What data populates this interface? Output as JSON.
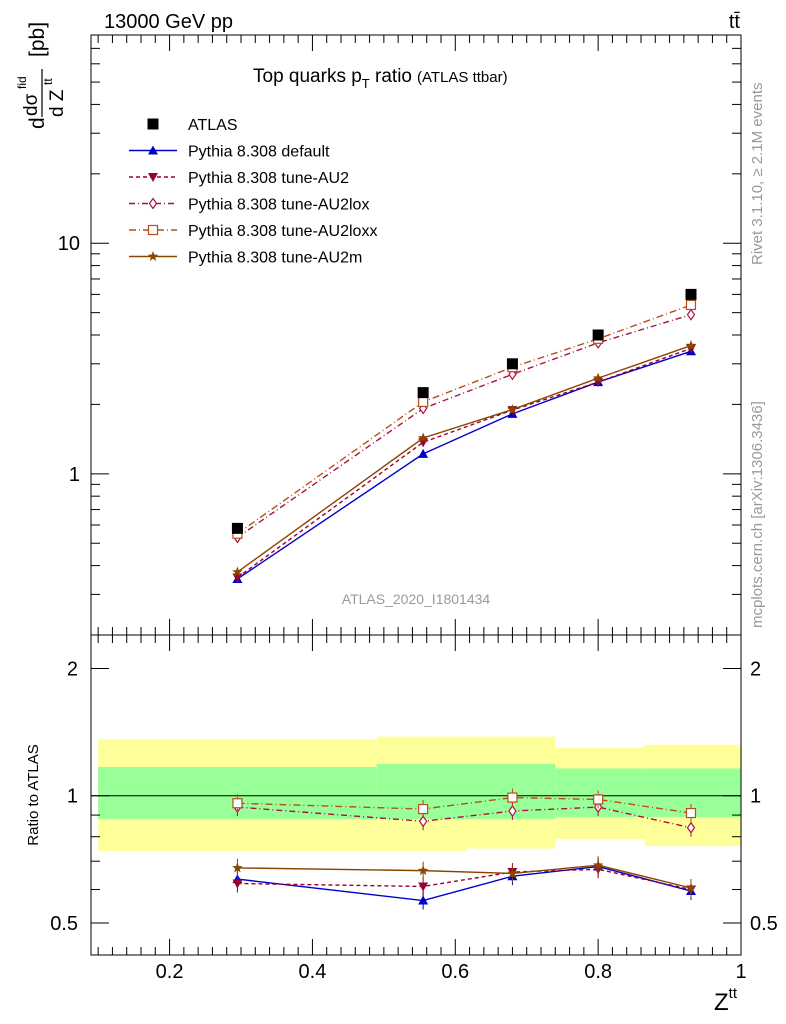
{
  "header": {
    "left": "13000 GeV pp",
    "right": "tt̄"
  },
  "side": {
    "rivet": "Rivet 3.1.10, ≥ 2.1M events",
    "mcplots": "mcplots.cern.ch [arXiv:1306.3436]"
  },
  "chart_data": {
    "type": "line",
    "title": "Top quarks p",
    "title_sub": "T",
    "title_rest": " ratio",
    "title_paren": "(ATLAS ttbar)",
    "analysis_label": "ATLAS_2020_I1801434",
    "ylabel_top": "[pb]",
    "xlabel": "Z",
    "xlabel_sup": "tt",
    "ratio_ylabel": "Ratio to ATLAS",
    "x_ticklabels": [
      "0.2",
      "0.4",
      "0.6",
      "0.8",
      "1"
    ],
    "main_y_ticklabels": [
      "1",
      "10"
    ],
    "ratio_y_ticklabels": [
      "0.5",
      "1",
      "2"
    ],
    "xlim": [
      0.09,
      1.0
    ],
    "main_ylim": [
      0.2,
      80
    ],
    "main_yscale": "log",
    "ratio_ylim": [
      0.42,
      2.4
    ],
    "ratio_yscale": "log",
    "x": [
      0.295,
      0.555,
      0.68,
      0.8,
      0.93
    ],
    "bin_edges": [
      0.1,
      0.49,
      0.615,
      0.74,
      0.865,
      1.0
    ],
    "data": {
      "name": "ATLAS",
      "values": [
        0.58,
        2.25,
        3.0,
        4.0,
        6.0
      ],
      "band_inner": [
        [
          0.88,
          1.17
        ],
        [
          0.88,
          1.19
        ],
        [
          0.88,
          1.19
        ],
        [
          0.89,
          1.16
        ],
        [
          0.89,
          1.16
        ]
      ],
      "band_outer": [
        [
          0.74,
          1.36
        ],
        [
          0.74,
          1.38
        ],
        [
          0.75,
          1.38
        ],
        [
          0.79,
          1.3
        ],
        [
          0.76,
          1.32
        ]
      ]
    },
    "series": [
      {
        "name": "Pythia 8.308 default",
        "values": [
          0.35,
          1.22,
          1.82,
          2.5,
          3.4
        ],
        "ratio": [
          0.635,
          0.565,
          0.645,
          0.68,
          0.595
        ],
        "color": "#0000cc",
        "dash": "",
        "marker": "triangle-up"
      },
      {
        "name": "Pythia 8.308 tune-AU2",
        "values": [
          0.355,
          1.37,
          1.89,
          2.5,
          3.5
        ],
        "ratio": [
          0.62,
          0.61,
          0.66,
          0.67,
          0.6
        ],
        "color": "#990033",
        "dash": "4,3",
        "marker": "triangle-down"
      },
      {
        "name": "Pythia 8.308 tune-AU2lox",
        "values": [
          0.53,
          1.92,
          2.7,
          3.7,
          4.9
        ],
        "ratio": [
          0.94,
          0.87,
          0.92,
          0.94,
          0.84
        ],
        "color": "#aa1144",
        "dash": "6,3,1,3",
        "marker": "diamond-open"
      },
      {
        "name": "Pythia 8.308 tune-AU2loxx",
        "values": [
          0.55,
          2.05,
          2.9,
          3.85,
          5.4
        ],
        "ratio": [
          0.96,
          0.93,
          0.99,
          0.98,
          0.91
        ],
        "color": "#b84d1a",
        "dash": "7,3,1,3",
        "marker": "square-open"
      },
      {
        "name": "Pythia 8.308 tune-AU2m",
        "values": [
          0.375,
          1.43,
          1.9,
          2.6,
          3.6
        ],
        "ratio": [
          0.675,
          0.665,
          0.655,
          0.685,
          0.605
        ],
        "color": "#8a4500",
        "dash": "",
        "marker": "star"
      }
    ],
    "colors": {
      "band_inner": "#99ff99",
      "band_outer": "#ffff99",
      "data": "#000000"
    },
    "legend_placement": "top-left"
  }
}
